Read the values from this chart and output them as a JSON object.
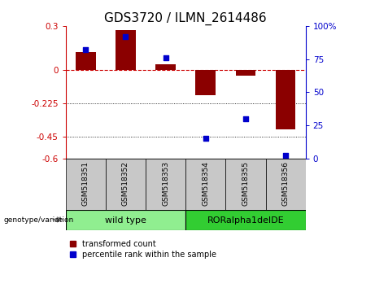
{
  "title": "GDS3720 / ILMN_2614486",
  "categories": [
    "GSM518351",
    "GSM518352",
    "GSM518353",
    "GSM518354",
    "GSM518355",
    "GSM518356"
  ],
  "bar_values": [
    0.12,
    0.27,
    0.04,
    -0.17,
    -0.04,
    -0.4
  ],
  "scatter_values": [
    82,
    92,
    76,
    15,
    30,
    2
  ],
  "ylim_left": [
    -0.6,
    0.3
  ],
  "ylim_right": [
    0,
    100
  ],
  "yticks_left": [
    0.3,
    0,
    -0.225,
    -0.45,
    -0.6
  ],
  "ytick_labels_left": [
    "0.3",
    "0",
    "-0.225",
    "-0.45",
    "-0.6"
  ],
  "yticks_right": [
    100,
    75,
    50,
    25,
    0
  ],
  "ytick_labels_right": [
    "100%",
    "75",
    "50",
    "25",
    "0"
  ],
  "bar_color": "#8B0000",
  "scatter_color": "#0000CC",
  "hline_color": "#CC0000",
  "dotted_lines": [
    -0.225,
    -0.45
  ],
  "group1_label": "wild type",
  "group2_label": "RORalpha1delDE",
  "group1_color": "#90EE90",
  "group2_color": "#32CD32",
  "group_row_label": "genotype/variation",
  "legend_bar_label": "transformed count",
  "legend_scatter_label": "percentile rank within the sample",
  "group1_indices": [
    0,
    1,
    2
  ],
  "group2_indices": [
    3,
    4,
    5
  ],
  "title_fontsize": 11,
  "tick_fontsize": 7.5,
  "cat_fontsize": 6.5,
  "group_fontsize": 8,
  "legend_fontsize": 7
}
